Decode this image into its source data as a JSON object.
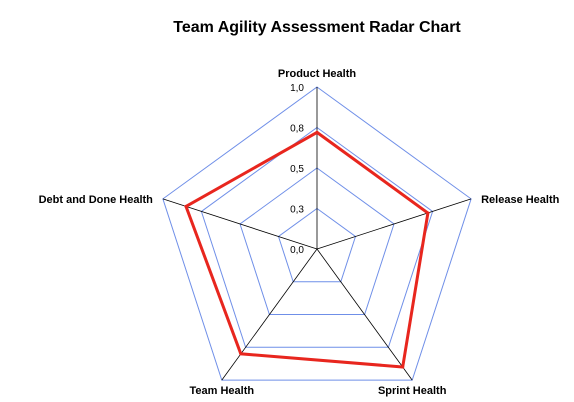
{
  "chart_data": {
    "type": "radar",
    "title": "Team Agility Assessment Radar Chart",
    "axes": [
      "Product Health",
      "Release Health",
      "Sprint Health",
      "Team Health",
      "Debt and Done Health"
    ],
    "tick_labels": [
      "0,0",
      "0,3",
      "0,5",
      "0,8",
      "1,0"
    ],
    "tick_values": [
      0,
      0.25,
      0.5,
      0.75,
      1.0
    ],
    "range": [
      0,
      1.0
    ],
    "series": [
      {
        "values": [
          0.72,
          0.72,
          0.9,
          0.8,
          0.85
        ]
      }
    ],
    "colors": {
      "grid": "#6f8fe8",
      "spokes": "#000000",
      "series": "#e8261e"
    },
    "grid": true
  }
}
